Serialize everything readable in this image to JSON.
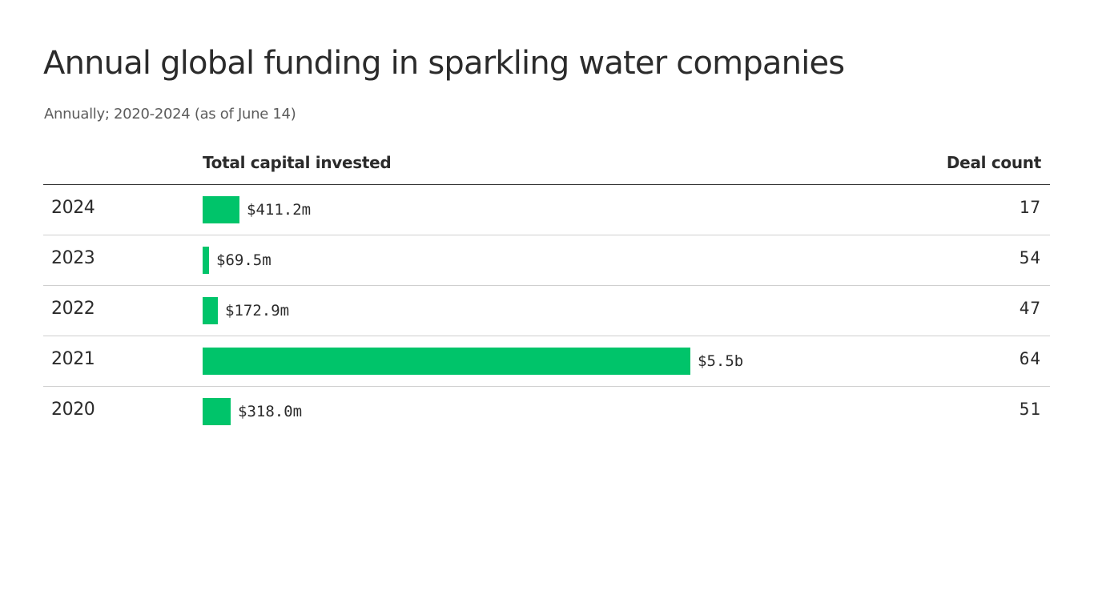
{
  "title": "Annual global funding in sparkling water companies",
  "subtitle": "Annually; 2020-2024 (as of June 14)",
  "columns": {
    "capital": "Total capital invested",
    "deals": "Deal count"
  },
  "colors": {
    "bar": "#00c46a",
    "header_rule": "#333333",
    "row_rule": "#cfcfcf"
  },
  "chart_data": {
    "type": "bar",
    "orientation": "horizontal",
    "title": "Annual global funding in sparkling water companies",
    "subtitle": "Annually; 2020-2024 (as of June 14)",
    "categories": [
      "2024",
      "2023",
      "2022",
      "2021",
      "2020"
    ],
    "series": [
      {
        "name": "Total capital invested",
        "unit": "USD millions",
        "values": [
          411.2,
          69.5,
          172.9,
          5500,
          318.0
        ],
        "labels": [
          "$411.2m",
          "$69.5m",
          "$172.9m",
          "$5.5b",
          "$318.0m"
        ]
      },
      {
        "name": "Deal count",
        "values": [
          17,
          54,
          47,
          64,
          51
        ]
      }
    ],
    "grid": false,
    "legend": "none"
  }
}
